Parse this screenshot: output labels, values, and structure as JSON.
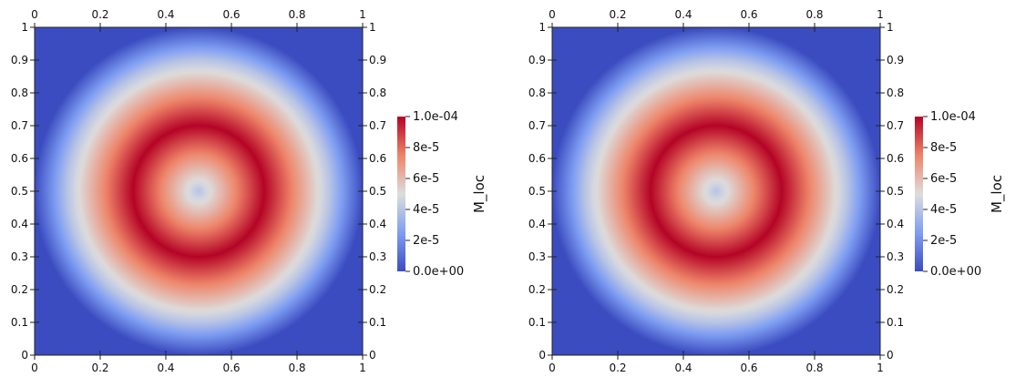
{
  "chart_data": [
    {
      "type": "heatmap",
      "field": "M_loc",
      "colorbar_title": "M_loc",
      "colorbar_ticks": [
        "1.0e-04",
        "8e-5",
        "6e-5",
        "4e-5",
        "2e-5",
        "0.0e+00"
      ],
      "colorbar_range": [
        0.0,
        0.0001
      ],
      "colormap": [
        "#3b4cc0",
        "#7f9ef2",
        "#dddddd",
        "#ee8468",
        "#b40426"
      ],
      "x_ticks": [
        "0",
        "0.2",
        "0.4",
        "0.6",
        "0.8",
        "1"
      ],
      "y_ticks": [
        "0",
        "0.1",
        "0.2",
        "0.3",
        "0.4",
        "0.5",
        "0.6",
        "0.7",
        "0.8",
        "0.9",
        "1"
      ],
      "xlim": [
        0,
        1
      ],
      "ylim": [
        0,
        1
      ],
      "ring_center": [
        0.5,
        0.5
      ],
      "profile_radius": [
        0.0,
        0.1,
        0.2,
        0.3,
        0.4,
        0.5
      ],
      "profile_value": [
        4e-05,
        7e-05,
        0.0001,
        7e-05,
        4e-05,
        0.0
      ]
    },
    {
      "type": "heatmap",
      "field": "M_loc",
      "colorbar_title": "M_loc",
      "colorbar_ticks": [
        "1.0e-04",
        "8e-5",
        "6e-5",
        "4e-5",
        "2e-5",
        "0.0e+00"
      ],
      "colorbar_range": [
        0.0,
        0.0001
      ],
      "colormap": [
        "#3b4cc0",
        "#7f9ef2",
        "#dddddd",
        "#ee8468",
        "#b40426"
      ],
      "x_ticks": [
        "0",
        "0.2",
        "0.4",
        "0.6",
        "0.8",
        "1"
      ],
      "y_ticks": [
        "0",
        "0.1",
        "0.2",
        "0.3",
        "0.4",
        "0.5",
        "0.6",
        "0.7",
        "0.8",
        "0.9",
        "1"
      ],
      "xlim": [
        0,
        1
      ],
      "ylim": [
        0,
        1
      ],
      "ring_center": [
        0.5,
        0.5
      ],
      "profile_radius": [
        0.0,
        0.1,
        0.2,
        0.3,
        0.4,
        0.5
      ],
      "profile_value": [
        4e-05,
        7e-05,
        0.0001,
        7e-05,
        4e-05,
        0.0
      ]
    }
  ]
}
